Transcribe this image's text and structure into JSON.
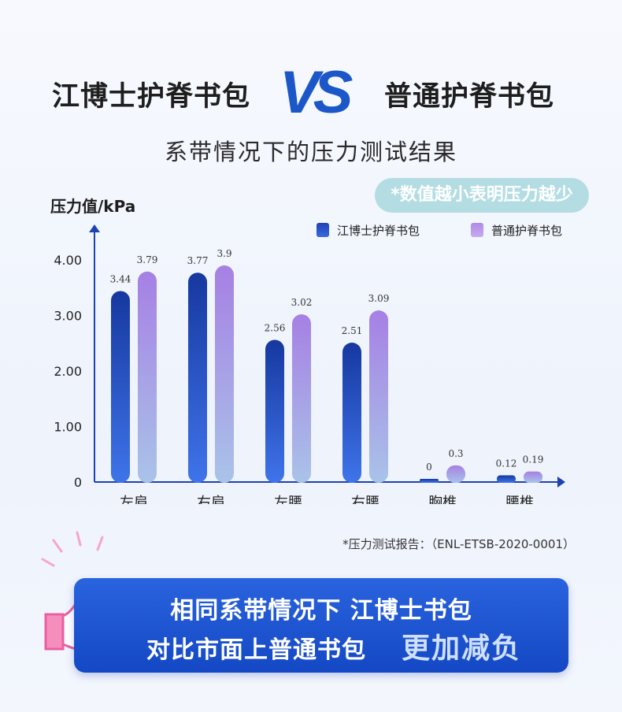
{
  "header": {
    "brand_left": "江博士护脊书包",
    "vs": "VS",
    "brand_right": "普通护脊书包",
    "subtitle": "系带情况下的压力测试结果",
    "note": "*数值越小表明压力越少"
  },
  "chart_data": {
    "type": "bar",
    "ylabel": "压力值/kPa",
    "categories": [
      "左肩",
      "右肩",
      "左腰",
      "右腰",
      "胸椎",
      "腰椎"
    ],
    "series": [
      {
        "name": "江博士护脊书包",
        "values": [
          3.44,
          3.77,
          2.56,
          2.51,
          0,
          0.12
        ],
        "color": "#1d42b4"
      },
      {
        "name": "普通护脊书包",
        "values": [
          3.79,
          3.9,
          3.02,
          3.09,
          0.3,
          0.19
        ],
        "color": "#b08ae6"
      }
    ],
    "value_labels": [
      [
        "3.44",
        "3.77",
        "2.56",
        "2.51",
        "0",
        "0.12"
      ],
      [
        "3.79",
        "3.9",
        "3.02",
        "3.09",
        "0.3",
        "0.19"
      ]
    ],
    "ylim": [
      0,
      4.5
    ],
    "yticks": [
      "0",
      "1.00",
      "2.00",
      "3.00",
      "4.00"
    ],
    "ytick_values": [
      0,
      1,
      2,
      3,
      4
    ],
    "grid": false,
    "legend_position": "top-right"
  },
  "footnote": "*压力测试报告：（ENL-ETSB-2020-0001）",
  "banner": {
    "line1": "相同系带情况下 江博士书包",
    "line2": "对比市面上普通书包",
    "line2_highlight": "更加减负"
  }
}
